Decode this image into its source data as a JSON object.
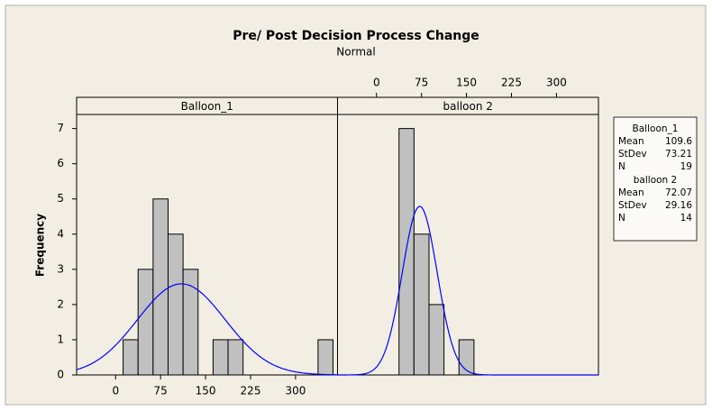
{
  "chart_data": {
    "type": "histogram",
    "title": "Pre/ Post Decision Process Change",
    "subtitle": "Normal",
    "ylabel": "Frequency",
    "ylim": [
      0,
      7.4
    ],
    "yticks": [
      0,
      1,
      2,
      3,
      4,
      5,
      6,
      7
    ],
    "xlim": [
      -65,
      370
    ],
    "xticks": [
      0,
      75,
      150,
      225,
      300
    ],
    "xaxis_positions": [
      "bottom",
      "top"
    ],
    "bins": [
      -12.5,
      12.5,
      37.5,
      62.5,
      87.5,
      112.5,
      137.5,
      162.5,
      187.5,
      212.5,
      237.5,
      262.5,
      287.5,
      312.5,
      337.5,
      362.5
    ],
    "bar_color": "#c0c0c0",
    "curve_color": "#0000ff",
    "stat_labels": [
      "Mean",
      "StDev",
      "N"
    ],
    "panels": [
      {
        "name": "Balloon_1",
        "counts": [
          0,
          1,
          3,
          5,
          4,
          3,
          0,
          1,
          1,
          0,
          0,
          0,
          0,
          0,
          1
        ],
        "mean": 109.6,
        "stdev": 73.21,
        "n": 19
      },
      {
        "name": "balloon 2",
        "counts": [
          0,
          0,
          7,
          4,
          2,
          0,
          1,
          0,
          0,
          0,
          0,
          0,
          0,
          0,
          0
        ],
        "mean": 72.07,
        "stdev": 29.16,
        "n": 14
      }
    ]
  }
}
